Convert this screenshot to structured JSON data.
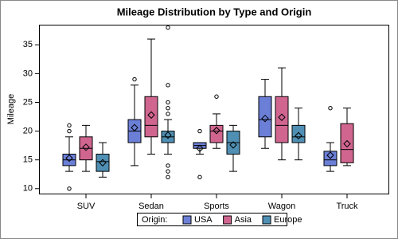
{
  "chart_data": {
    "type": "box",
    "title": "Mileage Distribution by Type and Origin",
    "y_label": "Mileage",
    "categories": [
      "SUV",
      "Sedan",
      "Sports",
      "Wagon",
      "Truck"
    ],
    "ylim": [
      9,
      38.5
    ],
    "yticks": [
      10,
      15,
      20,
      25,
      30,
      35
    ],
    "legend_title": "Origin:",
    "legend_position": "bottom",
    "series": [
      {
        "name": "USA",
        "color": "#6b7fd7",
        "boxes": [
          {
            "min": 13,
            "q1": 14,
            "median": 15,
            "q3": 16,
            "max": 19,
            "mean": 15.3,
            "outliers": [
              21,
              20,
              10
            ]
          },
          {
            "min": 14,
            "q1": 18,
            "median": 20,
            "q3": 22,
            "max": 28,
            "mean": 20.6,
            "outliers": [
              29
            ]
          },
          {
            "min": 16,
            "q1": 17,
            "median": 17.5,
            "q3": 18,
            "max": 18,
            "mean": 17,
            "outliers": [
              20,
              12
            ]
          },
          {
            "min": 17,
            "q1": 19,
            "median": 22,
            "q3": 26,
            "max": 29,
            "mean": 22.2,
            "outliers": []
          },
          {
            "min": 13,
            "q1": 14,
            "median": 15,
            "q3": 16.5,
            "max": 18,
            "mean": 15.8,
            "outliers": [
              24
            ]
          }
        ]
      },
      {
        "name": "Asia",
        "color": "#d0668f",
        "boxes": [
          {
            "min": 13,
            "q1": 15,
            "median": 17,
            "q3": 19,
            "max": 21,
            "mean": 17.2,
            "outliers": []
          },
          {
            "min": 16,
            "q1": 19,
            "median": 21,
            "q3": 26,
            "max": 36,
            "mean": 22.8,
            "outliers": []
          },
          {
            "min": 17,
            "q1": 18,
            "median": 20,
            "q3": 21,
            "max": 23,
            "mean": 20.1,
            "outliers": [
              26
            ]
          },
          {
            "min": 15,
            "q1": 18,
            "median": 21,
            "q3": 26,
            "max": 31,
            "mean": 22.4,
            "outliers": []
          },
          {
            "min": 14,
            "q1": 14.5,
            "median": 16.8,
            "q3": 21.3,
            "max": 24,
            "mean": 17.8,
            "outliers": []
          }
        ]
      },
      {
        "name": "Europe",
        "color": "#4f8fb3",
        "boxes": [
          {
            "min": 12,
            "q1": 13,
            "median": 14.7,
            "q3": 16,
            "max": 18,
            "mean": 14.5,
            "outliers": []
          },
          {
            "min": 16,
            "q1": 18,
            "median": 19,
            "q3": 20,
            "max": 22,
            "mean": 19.3,
            "outliers": [
              38,
              28,
              25,
              24,
              23,
              14,
              13,
              12
            ]
          },
          {
            "min": 13,
            "q1": 16,
            "median": 18,
            "q3": 20,
            "max": 21,
            "mean": 17.6,
            "outliers": []
          },
          {
            "min": 15,
            "q1": 18,
            "median": 19,
            "q3": 21,
            "max": 24,
            "mean": 19.2,
            "outliers": []
          },
          null
        ]
      }
    ]
  }
}
